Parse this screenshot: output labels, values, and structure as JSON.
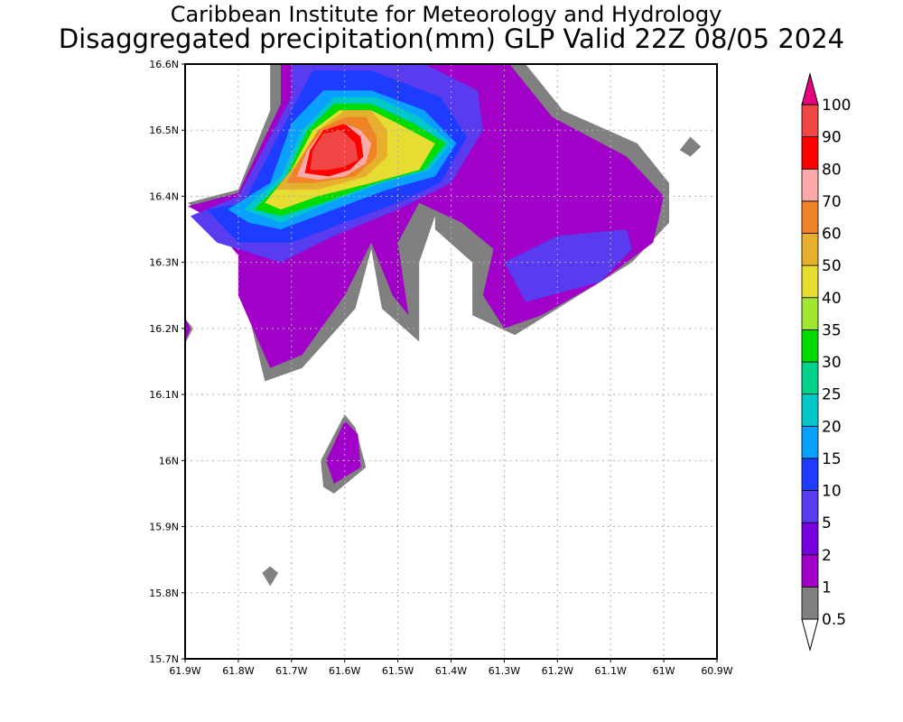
{
  "chart_data": {
    "type": "heatmap",
    "title": "Caribbean Institute for Meteorology and Hydrology",
    "subtitle": "Disaggregated precipitation(mm) GLP Valid 22Z 08/05 2024",
    "xlabel": "",
    "ylabel": "",
    "x_ticks": [
      "61.9W",
      "61.8W",
      "61.7W",
      "61.6W",
      "61.5W",
      "61.4W",
      "61.3W",
      "61.2W",
      "61.1W",
      "61W",
      "60.9W"
    ],
    "y_ticks": [
      "15.7N",
      "15.8N",
      "15.9N",
      "16N",
      "16.1N",
      "16.2N",
      "16.3N",
      "16.4N",
      "16.5N",
      "16.6N"
    ],
    "xlim": [
      -61.9,
      -60.9
    ],
    "ylim": [
      15.7,
      16.6
    ],
    "grid": true,
    "legend": {
      "placement": "right",
      "labels": [
        "0.5",
        "1",
        "2",
        "5",
        "10",
        "15",
        "20",
        "25",
        "30",
        "35",
        "40",
        "50",
        "60",
        "70",
        "80",
        "90",
        "100"
      ],
      "colors": [
        "#808080",
        "#a000c8",
        "#7800dc",
        "#5a3cf0",
        "#1e3cff",
        "#0aa0ff",
        "#00c8c8",
        "#00d28c",
        "#00dc00",
        "#a0e632",
        "#e6dc32",
        "#e6af2d",
        "#f08228",
        "#fbaaaa",
        "#ff0000",
        "#f04646",
        "#e60080"
      ]
    },
    "features": [
      {
        "level": "0.5",
        "polygon": [
          [
            -61.895,
            16.39
          ],
          [
            -61.8,
            16.41
          ],
          [
            -61.74,
            16.53
          ],
          [
            -61.74,
            16.6
          ],
          [
            -61.26,
            16.6
          ],
          [
            -61.19,
            16.53
          ],
          [
            -61.05,
            16.48
          ],
          [
            -60.99,
            16.42
          ],
          [
            -60.99,
            16.36
          ],
          [
            -61.06,
            16.3
          ],
          [
            -61.16,
            16.25
          ],
          [
            -61.28,
            16.19
          ],
          [
            -61.36,
            16.22
          ],
          [
            -61.36,
            16.3
          ],
          [
            -61.43,
            16.35
          ],
          [
            -61.43,
            16.37
          ],
          [
            -61.46,
            16.3
          ],
          [
            -61.46,
            16.18
          ],
          [
            -61.53,
            16.23
          ],
          [
            -61.55,
            16.32
          ],
          [
            -61.58,
            16.23
          ],
          [
            -61.68,
            16.14
          ],
          [
            -61.75,
            16.12
          ],
          [
            -61.78,
            16.22
          ],
          [
            -61.79,
            16.25
          ],
          [
            -61.79,
            16.31
          ],
          [
            -61.86,
            16.37
          ]
        ]
      },
      {
        "level": "0.5",
        "polygon": [
          [
            -61.905,
            16.22
          ],
          [
            -61.885,
            16.2
          ],
          [
            -61.905,
            16.17
          ]
        ]
      },
      {
        "level": "0.5",
        "polygon": [
          [
            -61.645,
            16.0
          ],
          [
            -61.6,
            16.07
          ],
          [
            -61.58,
            16.05
          ],
          [
            -61.56,
            15.99
          ],
          [
            -61.62,
            15.95
          ],
          [
            -61.64,
            15.96
          ]
        ]
      },
      {
        "level": "0.5",
        "polygon": [
          [
            -61.725,
            15.83
          ],
          [
            -61.74,
            15.84
          ],
          [
            -61.755,
            15.83
          ],
          [
            -61.74,
            15.81
          ]
        ]
      },
      {
        "level": "0.5",
        "polygon": [
          [
            -60.97,
            16.47
          ],
          [
            -60.95,
            16.49
          ],
          [
            -60.93,
            16.475
          ],
          [
            -60.95,
            16.46
          ]
        ]
      },
      {
        "level": "1",
        "polygon": [
          [
            -61.895,
            16.385
          ],
          [
            -61.8,
            16.405
          ],
          [
            -61.72,
            16.54
          ],
          [
            -61.72,
            16.6
          ],
          [
            -61.29,
            16.6
          ],
          [
            -61.21,
            16.52
          ],
          [
            -61.07,
            16.46
          ],
          [
            -61.0,
            16.4
          ],
          [
            -61.02,
            16.33
          ],
          [
            -61.12,
            16.27
          ],
          [
            -61.23,
            16.22
          ],
          [
            -61.3,
            16.2
          ],
          [
            -61.34,
            16.25
          ],
          [
            -61.32,
            16.32
          ],
          [
            -61.38,
            16.36
          ],
          [
            -61.46,
            16.39
          ],
          [
            -61.5,
            16.33
          ],
          [
            -61.48,
            16.22
          ],
          [
            -61.51,
            16.25
          ],
          [
            -61.55,
            16.33
          ],
          [
            -61.6,
            16.25
          ],
          [
            -61.68,
            16.16
          ],
          [
            -61.74,
            16.14
          ],
          [
            -61.8,
            16.25
          ],
          [
            -61.8,
            16.31
          ],
          [
            -61.86,
            16.37
          ]
        ]
      },
      {
        "level": "1",
        "polygon": [
          [
            -61.9,
            16.215
          ],
          [
            -61.89,
            16.2
          ],
          [
            -61.9,
            16.18
          ]
        ]
      },
      {
        "level": "1",
        "polygon": [
          [
            -61.635,
            16.0
          ],
          [
            -61.6,
            16.06
          ],
          [
            -61.575,
            16.04
          ],
          [
            -61.57,
            15.99
          ],
          [
            -61.62,
            15.965
          ]
        ]
      },
      {
        "level": "5",
        "polygon": [
          [
            -61.89,
            16.37
          ],
          [
            -61.8,
            16.4
          ],
          [
            -61.7,
            16.55
          ],
          [
            -61.7,
            16.6
          ],
          [
            -61.45,
            16.6
          ],
          [
            -61.35,
            16.56
          ],
          [
            -61.34,
            16.5
          ],
          [
            -61.4,
            16.42
          ],
          [
            -61.5,
            16.38
          ],
          [
            -61.62,
            16.34
          ],
          [
            -61.72,
            16.3
          ],
          [
            -61.84,
            16.33
          ]
        ]
      },
      {
        "level": "5",
        "polygon": [
          [
            -61.26,
            16.24
          ],
          [
            -61.12,
            16.27
          ],
          [
            -61.06,
            16.32
          ],
          [
            -61.07,
            16.35
          ],
          [
            -61.2,
            16.34
          ],
          [
            -61.3,
            16.3
          ]
        ]
      },
      {
        "level": "10",
        "polygon": [
          [
            -61.86,
            16.38
          ],
          [
            -61.79,
            16.39
          ],
          [
            -61.7,
            16.53
          ],
          [
            -61.66,
            16.59
          ],
          [
            -61.55,
            16.59
          ],
          [
            -61.42,
            16.55
          ],
          [
            -61.37,
            16.49
          ],
          [
            -61.42,
            16.42
          ],
          [
            -61.5,
            16.39
          ],
          [
            -61.6,
            16.36
          ],
          [
            -61.7,
            16.33
          ],
          [
            -61.8,
            16.33
          ]
        ]
      },
      {
        "level": "15",
        "polygon": [
          [
            -61.82,
            16.38
          ],
          [
            -61.74,
            16.42
          ],
          [
            -61.7,
            16.51
          ],
          [
            -61.64,
            16.56
          ],
          [
            -61.55,
            16.56
          ],
          [
            -61.45,
            16.53
          ],
          [
            -61.39,
            16.48
          ],
          [
            -61.43,
            16.43
          ],
          [
            -61.52,
            16.41
          ],
          [
            -61.62,
            16.38
          ],
          [
            -61.72,
            16.35
          ],
          [
            -61.78,
            16.36
          ]
        ]
      },
      {
        "level": "20",
        "polygon": [
          [
            -61.79,
            16.38
          ],
          [
            -61.72,
            16.43
          ],
          [
            -61.68,
            16.5
          ],
          [
            -61.62,
            16.55
          ],
          [
            -61.54,
            16.55
          ],
          [
            -61.46,
            16.52
          ],
          [
            -61.4,
            16.48
          ],
          [
            -61.44,
            16.44
          ],
          [
            -61.53,
            16.42
          ],
          [
            -61.63,
            16.39
          ],
          [
            -61.72,
            16.36
          ]
        ]
      },
      {
        "level": "30",
        "polygon": [
          [
            -61.77,
            16.38
          ],
          [
            -61.71,
            16.43
          ],
          [
            -61.67,
            16.5
          ],
          [
            -61.62,
            16.54
          ],
          [
            -61.55,
            16.54
          ],
          [
            -61.47,
            16.51
          ],
          [
            -61.41,
            16.48
          ],
          [
            -61.45,
            16.44
          ],
          [
            -61.54,
            16.42
          ],
          [
            -61.64,
            16.39
          ],
          [
            -61.72,
            16.37
          ]
        ]
      },
      {
        "level": "40",
        "polygon": [
          [
            -61.75,
            16.39
          ],
          [
            -61.7,
            16.44
          ],
          [
            -61.66,
            16.5
          ],
          [
            -61.61,
            16.53
          ],
          [
            -61.55,
            16.53
          ],
          [
            -61.5,
            16.51
          ],
          [
            -61.43,
            16.48
          ],
          [
            -61.46,
            16.44
          ],
          [
            -61.55,
            16.42
          ],
          [
            -61.65,
            16.4
          ],
          [
            -61.72,
            16.38
          ]
        ]
      },
      {
        "level": "50",
        "polygon": [
          [
            -61.73,
            16.41
          ],
          [
            -61.69,
            16.45
          ],
          [
            -61.65,
            16.5
          ],
          [
            -61.6,
            16.53
          ],
          [
            -61.55,
            16.53
          ],
          [
            -61.52,
            16.5
          ],
          [
            -61.52,
            16.46
          ],
          [
            -61.56,
            16.43
          ],
          [
            -61.65,
            16.41
          ]
        ]
      },
      {
        "level": "60",
        "polygon": [
          [
            -61.71,
            16.42
          ],
          [
            -61.68,
            16.46
          ],
          [
            -61.65,
            16.5
          ],
          [
            -61.6,
            16.52
          ],
          [
            -61.56,
            16.52
          ],
          [
            -61.54,
            16.49
          ],
          [
            -61.54,
            16.46
          ],
          [
            -61.58,
            16.43
          ],
          [
            -61.66,
            16.42
          ]
        ]
      },
      {
        "level": "70",
        "polygon": [
          [
            -61.69,
            16.43
          ],
          [
            -61.67,
            16.47
          ],
          [
            -61.64,
            16.5
          ],
          [
            -61.6,
            16.51
          ],
          [
            -61.57,
            16.5
          ],
          [
            -61.55,
            16.48
          ],
          [
            -61.56,
            16.45
          ],
          [
            -61.6,
            16.43
          ],
          [
            -61.65,
            16.425
          ]
        ]
      },
      {
        "level": "80",
        "polygon": [
          [
            -61.675,
            16.435
          ],
          [
            -61.665,
            16.47
          ],
          [
            -61.64,
            16.5
          ],
          [
            -61.6,
            16.51
          ],
          [
            -61.57,
            16.49
          ],
          [
            -61.565,
            16.46
          ],
          [
            -61.59,
            16.44
          ],
          [
            -61.63,
            16.43
          ]
        ]
      },
      {
        "level": "90",
        "polygon": [
          [
            -61.665,
            16.44
          ],
          [
            -61.66,
            16.47
          ],
          [
            -61.64,
            16.495
          ],
          [
            -61.605,
            16.5
          ],
          [
            -61.58,
            16.48
          ],
          [
            -61.575,
            16.455
          ],
          [
            -61.6,
            16.445
          ],
          [
            -61.63,
            16.44
          ]
        ]
      }
    ]
  }
}
